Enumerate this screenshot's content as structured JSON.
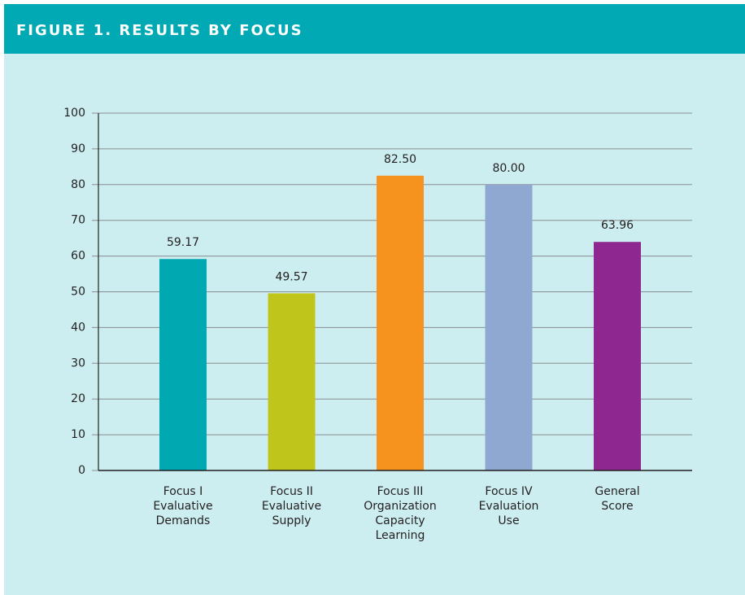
{
  "chart_data": {
    "type": "bar",
    "title": "FIGURE 1. RESULTS BY FOCUS",
    "categories": [
      [
        "Focus I",
        "Evaluative",
        "Demands"
      ],
      [
        "Focus II",
        "Evaluative",
        "Supply"
      ],
      [
        "Focus III",
        "Organization",
        "Capacity",
        "Learning"
      ],
      [
        "Focus IV",
        "Evaluation",
        "Use"
      ],
      [
        "General",
        "Score"
      ]
    ],
    "values": [
      59.17,
      49.57,
      82.5,
      80,
      63.96
    ],
    "value_labels": [
      "59.17",
      "49.57",
      "82.50",
      "80.00",
      "63.96"
    ],
    "colors": [
      "#00a9b2",
      "#bfc51a",
      "#f6921e",
      "#8fa8d1",
      "#8e278f"
    ],
    "ylim": [
      0,
      100
    ],
    "yticks": [
      0,
      10,
      20,
      30,
      40,
      50,
      60,
      70,
      80,
      90,
      100
    ],
    "grid": true
  }
}
